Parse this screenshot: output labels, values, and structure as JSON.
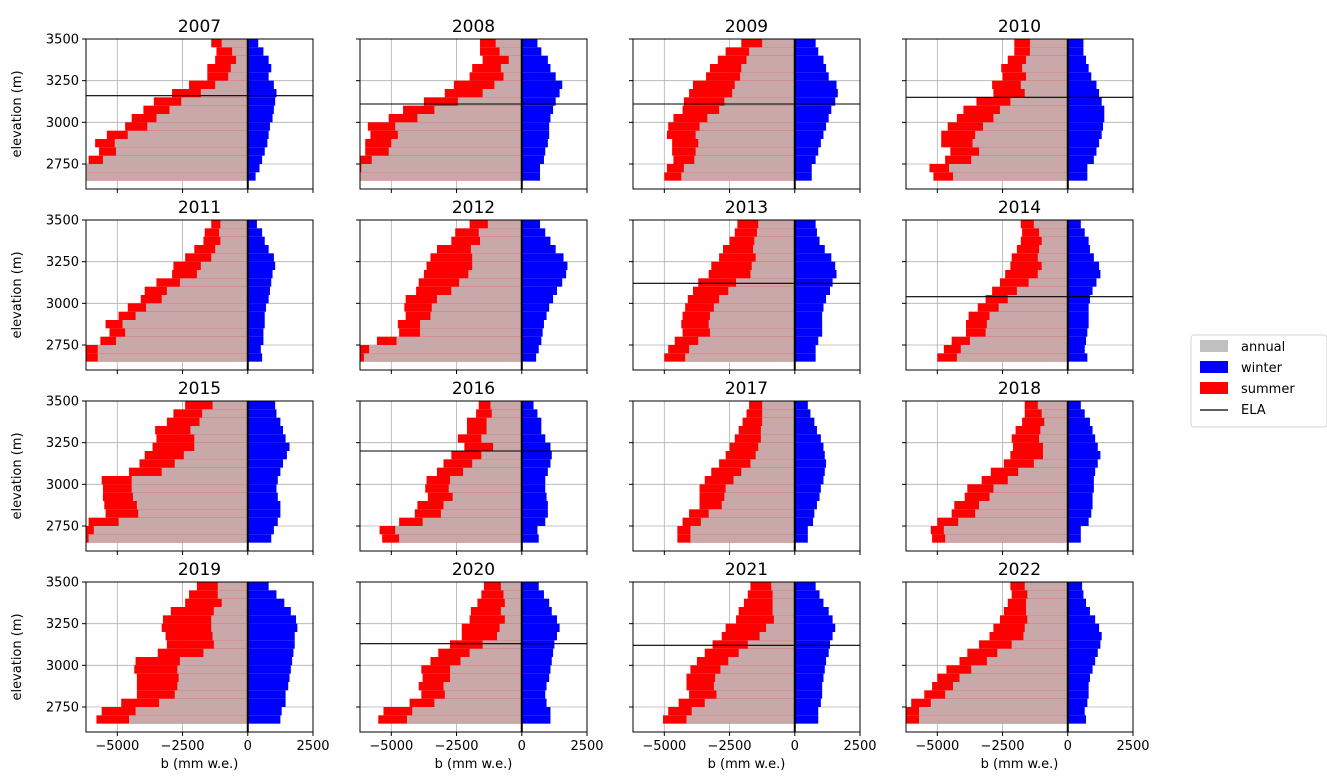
{
  "colors": {
    "annual": "#c0c0c0",
    "winter": "#0000ff",
    "summer": "#ff0000",
    "ela": "#000000",
    "grid": "#b0b0b0"
  },
  "chart_data": {
    "type": "bar",
    "orientation": "horizontal",
    "layout": {
      "rows": 4,
      "cols": 4
    },
    "xlabel": "b (mm w.e.)",
    "ylabel": "elevation (m)",
    "xlim": [
      -6200,
      2500
    ],
    "ylim": [
      2600,
      3500
    ],
    "xticks": [
      -5000,
      -2500,
      0,
      2500
    ],
    "xtick_labels": [
      "−5000",
      "−2500",
      "0",
      "2500"
    ],
    "yticks": [
      2750,
      3000,
      3250,
      3500
    ],
    "ytick_labels": [
      "2750",
      "3000",
      "3250",
      "3500"
    ],
    "grid": true,
    "elevation_bands": [
      2675,
      2725,
      2775,
      2825,
      2875,
      2925,
      2975,
      3025,
      3075,
      3125,
      3175,
      3225,
      3275,
      3325,
      3375,
      3425,
      3475
    ],
    "band_height": 50,
    "legend": {
      "position": "right",
      "entries": [
        {
          "label": "annual",
          "kind": "patch",
          "color": "#c0c0c0"
        },
        {
          "label": "winter",
          "kind": "patch",
          "color": "#0000ff"
        },
        {
          "label": "summer",
          "kind": "patch",
          "color": "#ff0000"
        },
        {
          "label": "ELA",
          "kind": "line",
          "color": "#000000"
        }
      ]
    },
    "panels": [
      {
        "title": "2007",
        "ela": 3160,
        "winter": [
          300,
          450,
          550,
          650,
          750,
          800,
          850,
          950,
          1000,
          1050,
          1100,
          1000,
          800,
          900,
          800,
          600,
          400
        ],
        "summer": [
          -6800,
          -6800,
          -6100,
          -5700,
          -5850,
          -5400,
          -4700,
          -4450,
          -4000,
          -3600,
          -2900,
          -2250,
          -1550,
          -1550,
          -1250,
          -1200,
          -1400
        ]
      },
      {
        "title": "2008",
        "ela": 3110,
        "winter": [
          700,
          700,
          850,
          900,
          1000,
          1050,
          1050,
          1100,
          1200,
          1300,
          1450,
          1550,
          1300,
          1100,
          1000,
          750,
          600
        ],
        "summer": [
          -6900,
          -6850,
          -6600,
          -6000,
          -6000,
          -5800,
          -5900,
          -5100,
          -4550,
          -3750,
          -2950,
          -2600,
          -2000,
          -1900,
          -1500,
          -1600,
          -1600
        ]
      },
      {
        "title": "2009",
        "ela": 3110,
        "winter": [
          650,
          650,
          800,
          900,
          1000,
          1100,
          1200,
          1300,
          1400,
          1550,
          1650,
          1600,
          1300,
          1200,
          1100,
          900,
          800
        ],
        "summer": [
          -5000,
          -4900,
          -4650,
          -4700,
          -4700,
          -4900,
          -4850,
          -4650,
          -4300,
          -4250,
          -4050,
          -3900,
          -3400,
          -3250,
          -2950,
          -2650,
          -2050
        ]
      },
      {
        "title": "2010",
        "ela": 3150,
        "winter": [
          750,
          750,
          1000,
          1100,
          1200,
          1300,
          1350,
          1400,
          1400,
          1300,
          1200,
          1100,
          900,
          800,
          700,
          600,
          600
        ],
        "summer": [
          -5150,
          -5300,
          -4700,
          -4500,
          -4850,
          -4850,
          -4600,
          -4250,
          -4000,
          -3500,
          -2850,
          -2900,
          -2500,
          -2550,
          -2300,
          -2050,
          -2050
        ]
      },
      {
        "title": "2011",
        "ela": null,
        "winter": [
          550,
          500,
          600,
          600,
          650,
          650,
          700,
          800,
          850,
          900,
          950,
          1050,
          1000,
          800,
          650,
          550,
          350
        ],
        "summer": [
          -6300,
          -6250,
          -5650,
          -5300,
          -5450,
          -4950,
          -4600,
          -4100,
          -3950,
          -3500,
          -2900,
          -2850,
          -2400,
          -2050,
          -1700,
          -1650,
          -1400
        ]
      },
      {
        "title": "2012",
        "ela": null,
        "winter": [
          550,
          650,
          750,
          800,
          850,
          950,
          1050,
          1200,
          1350,
          1550,
          1700,
          1750,
          1600,
          1300,
          1100,
          900,
          700
        ],
        "summer": [
          -6600,
          -6500,
          -5550,
          -4700,
          -4750,
          -4450,
          -4500,
          -4450,
          -4050,
          -3950,
          -3750,
          -3650,
          -3500,
          -3250,
          -2700,
          -2550,
          -2000
        ]
      },
      {
        "title": "2013",
        "ela": 3120,
        "winter": [
          800,
          800,
          900,
          1050,
          1050,
          1050,
          1100,
          1200,
          1350,
          1450,
          1600,
          1550,
          1400,
          1150,
          950,
          850,
          800
        ],
        "summer": [
          -5000,
          -4850,
          -4600,
          -4300,
          -4350,
          -4300,
          -4200,
          -4100,
          -3900,
          -3700,
          -3300,
          -3200,
          -2900,
          -2750,
          -2500,
          -2300,
          -2200
        ]
      },
      {
        "title": "2014",
        "ela": 3040,
        "winter": [
          750,
          650,
          700,
          750,
          800,
          800,
          800,
          850,
          950,
          1100,
          1250,
          1200,
          1000,
          850,
          800,
          650,
          500
        ],
        "summer": [
          -5000,
          -4750,
          -4450,
          -3900,
          -3900,
          -3800,
          -3450,
          -3150,
          -2900,
          -2600,
          -2400,
          -2200,
          -2150,
          -1950,
          -1800,
          -1750,
          -1800
        ]
      },
      {
        "title": "2015",
        "ela": null,
        "winter": [
          900,
          1000,
          1150,
          1250,
          1250,
          1150,
          1100,
          1150,
          1250,
          1350,
          1500,
          1600,
          1450,
          1350,
          1250,
          1100,
          1050
        ],
        "summer": [
          -7000,
          -6900,
          -6100,
          -5450,
          -5500,
          -5550,
          -5550,
          -5600,
          -4550,
          -4150,
          -3950,
          -3650,
          -3500,
          -3550,
          -3100,
          -2850,
          -2400
        ]
      },
      {
        "title": "2016",
        "ela": 3200,
        "winter": [
          650,
          600,
          900,
          1000,
          1000,
          950,
          900,
          900,
          1000,
          1100,
          1150,
          1100,
          900,
          750,
          750,
          600,
          450
        ],
        "summer": [
          -5350,
          -5450,
          -4700,
          -4100,
          -4000,
          -3600,
          -3700,
          -3650,
          -3250,
          -3000,
          -2700,
          -2200,
          -2450,
          -2100,
          -2100,
          -1750,
          -1650
        ]
      },
      {
        "title": "2017",
        "ela": null,
        "winter": [
          500,
          500,
          700,
          750,
          850,
          950,
          1000,
          1100,
          1150,
          1200,
          1150,
          1100,
          1000,
          850,
          750,
          600,
          500
        ],
        "summer": [
          -4500,
          -4500,
          -4300,
          -4050,
          -3650,
          -3650,
          -3650,
          -3450,
          -3200,
          -2900,
          -2650,
          -2500,
          -2300,
          -2150,
          -2000,
          -1850,
          -1750
        ]
      },
      {
        "title": "2018",
        "ela": null,
        "winter": [
          500,
          500,
          800,
          900,
          950,
          950,
          1000,
          1000,
          1050,
          1150,
          1250,
          1150,
          1050,
          950,
          850,
          650,
          500
        ],
        "summer": [
          -5200,
          -5250,
          -5000,
          -4450,
          -4350,
          -3950,
          -3850,
          -3300,
          -2950,
          -2450,
          -2200,
          -2100,
          -2150,
          -2000,
          -1750,
          -1650,
          -1650
        ]
      },
      {
        "title": "2019",
        "ela": null,
        "winter": [
          1250,
          1300,
          1450,
          1450,
          1550,
          1600,
          1650,
          1700,
          1750,
          1800,
          1800,
          1900,
          1850,
          1650,
          1400,
          1100,
          800
        ],
        "summer": [
          -5800,
          -5600,
          -4850,
          -4250,
          -4250,
          -4250,
          -4350,
          -4300,
          -3450,
          -3100,
          -3150,
          -3300,
          -3250,
          -2950,
          -2400,
          -2250,
          -1950
        ]
      },
      {
        "title": "2020",
        "ela": 3130,
        "winter": [
          1100,
          1100,
          950,
          900,
          950,
          1050,
          1100,
          1150,
          1200,
          1250,
          1350,
          1450,
          1350,
          1150,
          1050,
          850,
          650
        ],
        "summer": [
          -5500,
          -5300,
          -4300,
          -3850,
          -3950,
          -3800,
          -3850,
          -3500,
          -3200,
          -2750,
          -2300,
          -2300,
          -2000,
          -1950,
          -1700,
          -1550,
          -1450
        ]
      },
      {
        "title": "2021",
        "ela": 3120,
        "winter": [
          900,
          900,
          1000,
          1050,
          1050,
          1100,
          1150,
          1200,
          1300,
          1350,
          1450,
          1550,
          1450,
          1300,
          1100,
          950,
          800
        ],
        "summer": [
          -5050,
          -4850,
          -4450,
          -4050,
          -4150,
          -4150,
          -4000,
          -3750,
          -3450,
          -3150,
          -2800,
          -2650,
          -2250,
          -2150,
          -1950,
          -1800,
          -1700
        ]
      },
      {
        "title": "2022",
        "ela": null,
        "winter": [
          700,
          650,
          750,
          800,
          800,
          850,
          950,
          1050,
          1150,
          1250,
          1300,
          1200,
          1050,
          850,
          700,
          600,
          550
        ],
        "summer": [
          -6400,
          -6350,
          -6000,
          -5500,
          -5200,
          -5000,
          -4650,
          -4150,
          -3850,
          -3400,
          -3000,
          -2850,
          -2600,
          -2450,
          -2300,
          -2150,
          -2200
        ]
      }
    ]
  }
}
